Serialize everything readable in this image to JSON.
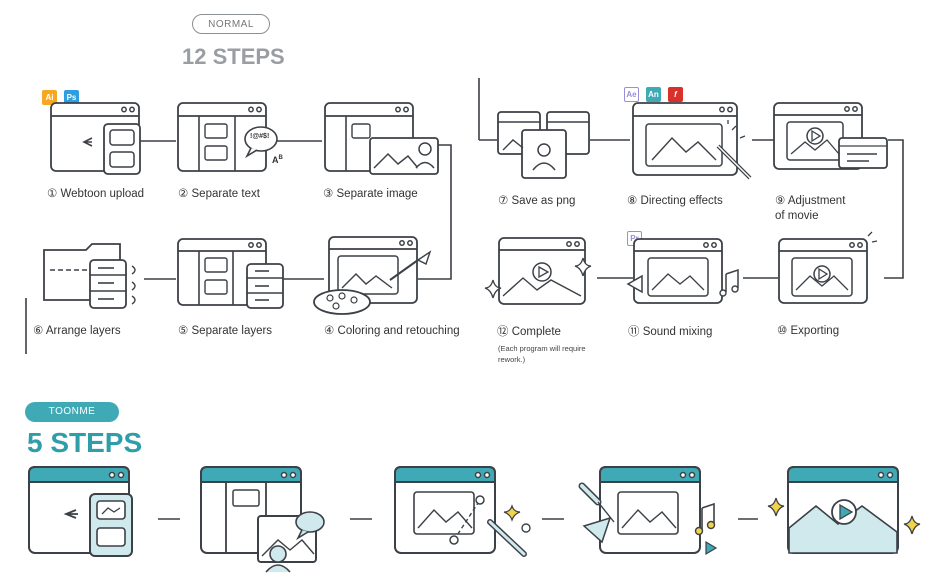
{
  "normal": {
    "tag": "NORMAL",
    "title": "12 STEPS",
    "steps": [
      {
        "num": "①",
        "label": "Webtoon upload"
      },
      {
        "num": "②",
        "label": "Separate text"
      },
      {
        "num": "③",
        "label": "Separate image"
      },
      {
        "num": "④",
        "label": "Coloring and retouching"
      },
      {
        "num": "⑤",
        "label": "Separate layers"
      },
      {
        "num": "⑥",
        "label": "Arrange layers"
      },
      {
        "num": "⑦",
        "label": "Save as png"
      },
      {
        "num": "⑧",
        "label": "Directing effects"
      },
      {
        "num": "⑨",
        "label": "Adjustment",
        "label2": "of movie"
      },
      {
        "num": "⑩",
        "label": "Exporting"
      },
      {
        "num": "⑪",
        "label": "Sound mixing"
      },
      {
        "num": "⑫",
        "label": "Complete",
        "note": "(Each program will require",
        "note2": "rework.)"
      }
    ],
    "badges": {
      "ai": "Ai",
      "ps": "Ps",
      "ae": "Ae",
      "an": "An",
      "fl": "f",
      "pr": "Pr"
    },
    "speech_text": "!@#$!",
    "ab_text": "A",
    "ab_sup": "B"
  },
  "toonme": {
    "tag": "TOONME",
    "title": "5 STEPS"
  },
  "colors": {
    "teal": "#3fa9b5",
    "outline": "#3c4147",
    "gray_title": "#9a9ea3",
    "ai": "#f7a823",
    "ps": "#2d9ee0",
    "ae": "#9a8fd4",
    "an": "#3fa9b5",
    "fl": "#d9302b",
    "pr": "#9a8fd4"
  }
}
